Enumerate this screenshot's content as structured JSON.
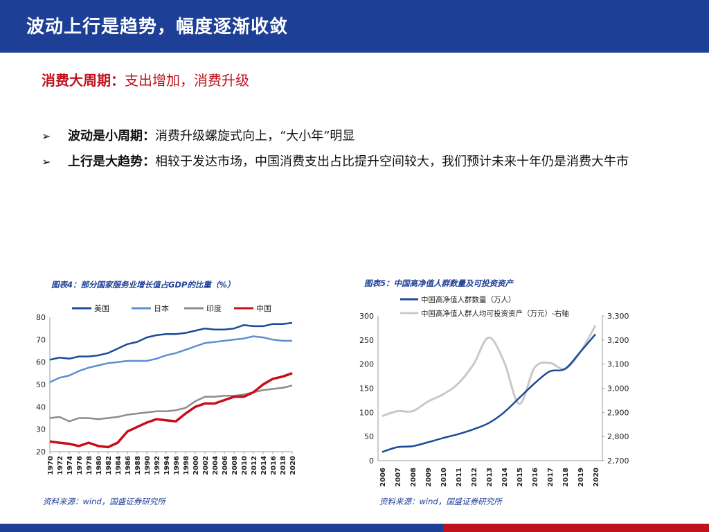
{
  "header": {
    "title": "波动上行是趋势，幅度逐渐收敛"
  },
  "subtitle": {
    "lead": "消费大周期：",
    "rest": "支出增加，消费升级"
  },
  "bullets": [
    {
      "mark": "➢",
      "lead": "波动是小周期：",
      "text": "消费升级螺旋式向上，“大小年”明显"
    },
    {
      "mark": "➢",
      "lead": "上行是大趋势：",
      "text": "相较于发达市场，中国消费支出占比提升空间较大，我们预计未来十年仍是消费大牛市"
    }
  ],
  "chart1": {
    "title": "图表4：部分国家服务业增长值占GDP的比重（%）",
    "source": "资料来源：wind，国盛证券研究所"
  },
  "chart2": {
    "title": "图表5：中国高净值人群数量及可投资资产",
    "source": "资料来源：wind，国盛证券研究所"
  },
  "colors": {
    "blue": "#1e3f96",
    "red": "#c0121c",
    "navy": "#1b4a9a",
    "lightblue": "#5b8fd0",
    "gray": "#8c8c8c",
    "lightgray": "#c8c8c8",
    "chart_red": "#c80d18"
  },
  "chart_data": [
    {
      "type": "line",
      "title": "图表4：部分国家服务业增长值占GDP的比重（%）",
      "x": [
        1970,
        1972,
        1974,
        1976,
        1978,
        1980,
        1982,
        1984,
        1986,
        1988,
        1990,
        1992,
        1994,
        1996,
        1998,
        2000,
        2002,
        2004,
        2006,
        2008,
        2010,
        2012,
        2014,
        2016,
        2018,
        2020
      ],
      "ylim": [
        20,
        80
      ],
      "yticks": [
        20,
        30,
        40,
        50,
        60,
        70,
        80
      ],
      "xticks": [
        "1970",
        "1972",
        "1974",
        "1976",
        "1978",
        "1980",
        "1982",
        "1984",
        "1986",
        "1988",
        "1990",
        "1992",
        "1994",
        "1996",
        "1998",
        "2000",
        "2002",
        "2004",
        "2006",
        "2008",
        "2010",
        "2012",
        "2014",
        "2016",
        "2018",
        "2020"
      ],
      "legend": "top",
      "series": [
        {
          "name": "美国",
          "color": "#1b4a9a",
          "values": [
            61,
            62,
            61.5,
            62.5,
            62.5,
            63,
            64,
            66,
            68,
            69,
            71,
            72,
            72.5,
            72.5,
            73,
            74,
            75,
            74.5,
            74.5,
            75,
            76.5,
            76,
            76,
            77,
            77,
            77.5
          ]
        },
        {
          "name": "日本",
          "color": "#5b8fd0",
          "values": [
            51,
            53,
            54,
            56,
            57.5,
            58.5,
            59.5,
            60,
            60.5,
            60.5,
            60.5,
            61.5,
            63,
            64,
            65.5,
            67,
            68.5,
            69,
            69.5,
            70,
            70.5,
            71.5,
            71,
            70,
            69.5,
            69.5
          ]
        },
        {
          "name": "印度",
          "color": "#8c8c8c",
          "values": [
            35,
            35.5,
            33.5,
            35,
            35,
            34.5,
            35,
            35.5,
            36.5,
            37,
            37.5,
            38,
            38,
            38.5,
            39.5,
            42.5,
            44.5,
            44.5,
            45,
            45,
            45.5,
            46.5,
            47.5,
            48,
            48.5,
            49.5
          ]
        },
        {
          "name": "中国",
          "color": "#c80d18",
          "values": [
            24.5,
            24,
            23.5,
            22.5,
            24,
            22.5,
            22,
            24,
            29,
            31,
            33,
            34.5,
            34,
            33.5,
            37,
            40,
            41.5,
            41.5,
            43,
            44.5,
            44.5,
            46.5,
            50,
            52.5,
            53.5,
            55
          ]
        }
      ]
    },
    {
      "type": "line",
      "title": "图表5：中国高净值人群数量及可投资资产",
      "x": [
        2006,
        2007,
        2008,
        2009,
        2010,
        2011,
        2012,
        2013,
        2014,
        2015,
        2016,
        2017,
        2018,
        2019,
        2020
      ],
      "xticks": [
        "2006",
        "2007",
        "2008",
        "2009",
        "2010",
        "2011",
        "2012",
        "2013",
        "2014",
        "2015",
        "2016",
        "2017",
        "2018",
        "2019",
        "2020"
      ],
      "y_left": {
        "lim": [
          0,
          300
        ],
        "ticks": [
          "0",
          "50",
          "100",
          "150",
          "200",
          "250",
          "300"
        ]
      },
      "y_right": {
        "lim": [
          2700,
          3300
        ],
        "ticks": [
          "2,700",
          "2,800",
          "2,900",
          "3,000",
          "3,100",
          "3,200",
          "3,300"
        ]
      },
      "legend": "top-left",
      "series": [
        {
          "name": "中国高净值人群数量（万人）",
          "axis": "left",
          "color": "#1b4a9a",
          "values": [
            18,
            28,
            30,
            38,
            47,
            55,
            65,
            78,
            100,
            130,
            160,
            185,
            190,
            225,
            262
          ]
        },
        {
          "name": "中国高净值人群人均可投资资产（万元）-右轴",
          "axis": "right",
          "color": "#c8c8c8",
          "values": [
            2885,
            2905,
            2905,
            2945,
            2975,
            3020,
            3100,
            3210,
            3110,
            2935,
            3085,
            3105,
            3080,
            3150,
            3260
          ]
        }
      ]
    }
  ]
}
